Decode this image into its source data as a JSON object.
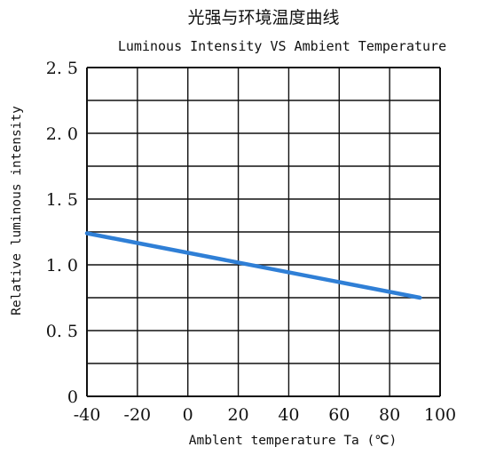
{
  "chart_data": {
    "type": "line",
    "title": "光强与环境温度曲线",
    "subtitle": "Luminous Intensity VS Ambient Temperature",
    "xlabel": "Amblent temperature Ta (℃)",
    "ylabel": "Relative luminous intensity",
    "xlim": [
      -40,
      100
    ],
    "ylim": [
      0,
      2.5
    ],
    "x_ticks": [
      -40,
      -20,
      0,
      20,
      40,
      60,
      80,
      100
    ],
    "x_tick_labels": [
      "-40",
      "-20",
      "0",
      "20",
      "40",
      "60",
      "80",
      "100"
    ],
    "y_ticks": [
      0,
      0.5,
      1.0,
      1.5,
      2.0,
      2.5
    ],
    "y_tick_labels": [
      "0",
      "0. 5",
      "1. 0",
      "1. 5",
      "2. 0",
      "2. 5"
    ],
    "grid": true,
    "grid_x_step": 20,
    "grid_y_step": 0.25,
    "series": [
      {
        "color": "#2f7fd6",
        "x": [
          -40,
          92
        ],
        "y": [
          1.24,
          0.75
        ]
      }
    ]
  }
}
